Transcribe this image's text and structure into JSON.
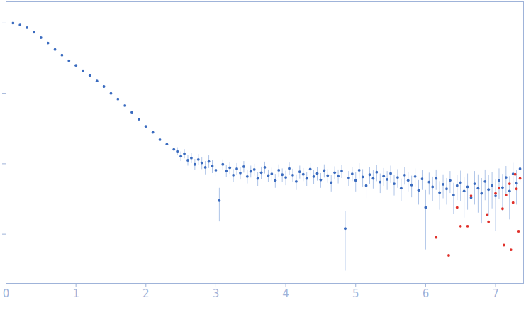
{
  "chart_data": {
    "type": "scatter",
    "log": "y",
    "tick_labels": "x",
    "grid": false,
    "xlim": [
      0,
      7.4
    ],
    "xticks": [
      0,
      1,
      2,
      3,
      4,
      5,
      6,
      7
    ],
    "ylim": [
      0.0002,
      2
    ],
    "yticks": [
      0.001,
      0.01,
      0.1,
      1
    ],
    "series": [
      {
        "color": "#3a6bbf",
        "marker": "circle",
        "error_color": "#aec4e8",
        "x": [
          0.1,
          0.2,
          0.3,
          0.4,
          0.5,
          0.6,
          0.7,
          0.8,
          0.9,
          1.0,
          1.1,
          1.2,
          1.3,
          1.4,
          1.5,
          1.6,
          1.7,
          1.8,
          1.9,
          2.0,
          2.1,
          2.2,
          2.3,
          2.4,
          2.45,
          2.5,
          2.55,
          2.6,
          2.65,
          2.7,
          2.75,
          2.8,
          2.85,
          2.9,
          2.95,
          3.0,
          3.05,
          3.1,
          3.15,
          3.2,
          3.25,
          3.3,
          3.35,
          3.4,
          3.45,
          3.5,
          3.55,
          3.6,
          3.65,
          3.7,
          3.75,
          3.8,
          3.85,
          3.9,
          3.95,
          4.0,
          4.05,
          4.1,
          4.15,
          4.2,
          4.25,
          4.3,
          4.35,
          4.4,
          4.45,
          4.5,
          4.55,
          4.6,
          4.65,
          4.7,
          4.75,
          4.8,
          4.85,
          4.9,
          4.95,
          5.0,
          5.05,
          5.1,
          5.15,
          5.2,
          5.25,
          5.3,
          5.35,
          5.4,
          5.45,
          5.5,
          5.55,
          5.6,
          5.65,
          5.7,
          5.75,
          5.8,
          5.85,
          5.9,
          5.95,
          6.0,
          6.05,
          6.1,
          6.15,
          6.2,
          6.25,
          6.3,
          6.35,
          6.4,
          6.45,
          6.5,
          6.55,
          6.6,
          6.65,
          6.7,
          6.75,
          6.8,
          6.85,
          6.9,
          6.95,
          7.0,
          7.05,
          7.1,
          7.15,
          7.2,
          7.25,
          7.3,
          7.35
        ],
        "values": [
          1.0,
          0.94,
          0.86,
          0.74,
          0.62,
          0.52,
          0.42,
          0.35,
          0.29,
          0.25,
          0.21,
          0.18,
          0.15,
          0.125,
          0.1,
          0.083,
          0.067,
          0.054,
          0.043,
          0.034,
          0.028,
          0.022,
          0.019,
          0.016,
          0.015,
          0.0128,
          0.0139,
          0.0112,
          0.0121,
          0.0098,
          0.0115,
          0.0103,
          0.0089,
          0.0108,
          0.0093,
          0.0081,
          0.003,
          0.0098,
          0.0079,
          0.0088,
          0.0069,
          0.0085,
          0.0074,
          0.0091,
          0.0066,
          0.0078,
          0.0083,
          0.0062,
          0.0075,
          0.0089,
          0.0068,
          0.0072,
          0.0058,
          0.0081,
          0.007,
          0.0064,
          0.0086,
          0.0069,
          0.0056,
          0.0077,
          0.0071,
          0.0062,
          0.0084,
          0.0066,
          0.0073,
          0.0059,
          0.008,
          0.0068,
          0.0054,
          0.0075,
          0.0067,
          0.0079,
          0.0012,
          0.0063,
          0.0072,
          0.0058,
          0.0081,
          0.0065,
          0.0049,
          0.007,
          0.0062,
          0.0076,
          0.0055,
          0.0067,
          0.006,
          0.0073,
          0.0052,
          0.0064,
          0.0045,
          0.0069,
          0.0058,
          0.005,
          0.0066,
          0.0042,
          0.0061,
          0.0024,
          0.0055,
          0.0047,
          0.0062,
          0.0039,
          0.0051,
          0.0044,
          0.0058,
          0.0036,
          0.0049,
          0.0054,
          0.0041,
          0.0047,
          0.0033,
          0.0052,
          0.0045,
          0.0038,
          0.0056,
          0.0043,
          0.0049,
          0.0035,
          0.0058,
          0.0046,
          0.0064,
          0.0041,
          0.0072,
          0.0053,
          0.0085
        ],
        "errors": [
          0.02,
          0.019,
          0.017,
          0.015,
          0.012,
          0.01,
          0.008,
          0.007,
          0.006,
          0.005,
          0.0042,
          0.0036,
          0.003,
          0.0025,
          0.002,
          0.0017,
          0.0013,
          0.0011,
          0.0009,
          0.0007,
          0.0006,
          0.0005,
          0.0004,
          0.0004,
          0.002,
          0.002,
          0.0021,
          0.0019,
          0.002,
          0.0018,
          0.0021,
          0.002,
          0.0019,
          0.0022,
          0.002,
          0.0015,
          0.0015,
          0.0016,
          0.0015,
          0.0017,
          0.0014,
          0.0016,
          0.0015,
          0.0017,
          0.0014,
          0.0015,
          0.0016,
          0.0014,
          0.0015,
          0.0017,
          0.0014,
          0.0015,
          0.0013,
          0.0016,
          0.0015,
          0.0015,
          0.0017,
          0.0015,
          0.0014,
          0.0016,
          0.0015,
          0.0014,
          0.0017,
          0.0015,
          0.0016,
          0.0014,
          0.0017,
          0.0015,
          0.0014,
          0.0016,
          0.0015,
          0.0017,
          0.0009,
          0.0015,
          0.0016,
          0.0018,
          0.002,
          0.0018,
          0.0017,
          0.0019,
          0.0018,
          0.002,
          0.0017,
          0.0019,
          0.0018,
          0.002,
          0.0017,
          0.0019,
          0.0016,
          0.0019,
          0.0018,
          0.0017,
          0.0019,
          0.0016,
          0.0019,
          0.0018,
          0.0019,
          0.0018,
          0.002,
          0.0017,
          0.0019,
          0.0018,
          0.002,
          0.0017,
          0.0019,
          0.0025,
          0.0024,
          0.0025,
          0.0023,
          0.0026,
          0.0025,
          0.0024,
          0.0026,
          0.0025,
          0.0026,
          0.0024,
          0.0027,
          0.0025,
          0.0028,
          0.0025,
          0.003,
          0.0027,
          0.0032
        ]
      },
      {
        "color": "#e0302a",
        "marker": "circle",
        "x": [
          6.15,
          6.33,
          6.45,
          6.5,
          6.6,
          6.65,
          6.88,
          6.9,
          7.0,
          7.05,
          7.1,
          7.12,
          7.15,
          7.2,
          7.22,
          7.25,
          7.28,
          7.3,
          7.33,
          7.35
        ],
        "values": [
          0.0009,
          0.0005,
          0.0024,
          0.0013,
          0.0013,
          0.0035,
          0.0019,
          0.0015,
          0.0038,
          0.0045,
          0.0023,
          0.0007,
          0.0036,
          0.0052,
          0.0006,
          0.0028,
          0.0071,
          0.0044,
          0.0011,
          0.0062
        ]
      }
    ]
  }
}
